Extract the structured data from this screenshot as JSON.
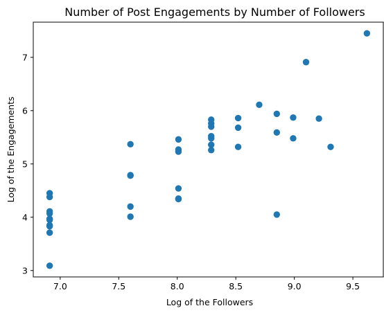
{
  "chart_data": {
    "type": "scatter",
    "title": "Number of Post Engagements by Number of Followers",
    "xlabel": "Log of the Followers",
    "ylabel": "Log of the Engagements",
    "xlim": [
      6.77,
      9.76
    ],
    "ylim": [
      2.88,
      7.66
    ],
    "xticks": [
      7.0,
      7.5,
      8.0,
      8.5,
      9.0,
      9.5
    ],
    "xtick_labels": [
      "7.0",
      "7.5",
      "8.0",
      "8.5",
      "9.0",
      "9.5"
    ],
    "yticks": [
      3,
      4,
      5,
      6,
      7
    ],
    "ytick_labels": [
      "3",
      "4",
      "5",
      "6",
      "7"
    ],
    "grid": false,
    "point_color": "#1f77b4",
    "points": [
      {
        "x": 6.91,
        "y": 4.45
      },
      {
        "x": 6.91,
        "y": 4.38
      },
      {
        "x": 6.91,
        "y": 4.11
      },
      {
        "x": 6.91,
        "y": 4.07
      },
      {
        "x": 6.91,
        "y": 3.97
      },
      {
        "x": 6.91,
        "y": 3.95
      },
      {
        "x": 6.91,
        "y": 3.85
      },
      {
        "x": 6.91,
        "y": 3.83
      },
      {
        "x": 6.91,
        "y": 3.71
      },
      {
        "x": 6.91,
        "y": 3.09
      },
      {
        "x": 7.6,
        "y": 5.37
      },
      {
        "x": 7.6,
        "y": 4.79
      },
      {
        "x": 7.6,
        "y": 4.78
      },
      {
        "x": 7.6,
        "y": 4.2
      },
      {
        "x": 7.6,
        "y": 4.01
      },
      {
        "x": 8.01,
        "y": 5.46
      },
      {
        "x": 8.01,
        "y": 5.27
      },
      {
        "x": 8.01,
        "y": 5.23
      },
      {
        "x": 8.01,
        "y": 4.54
      },
      {
        "x": 8.01,
        "y": 4.35
      },
      {
        "x": 8.01,
        "y": 4.34
      },
      {
        "x": 8.29,
        "y": 5.83
      },
      {
        "x": 8.29,
        "y": 5.76
      },
      {
        "x": 8.29,
        "y": 5.7
      },
      {
        "x": 8.29,
        "y": 5.52
      },
      {
        "x": 8.29,
        "y": 5.48
      },
      {
        "x": 8.29,
        "y": 5.36
      },
      {
        "x": 8.29,
        "y": 5.26
      },
      {
        "x": 8.52,
        "y": 5.86
      },
      {
        "x": 8.52,
        "y": 5.68
      },
      {
        "x": 8.52,
        "y": 5.32
      },
      {
        "x": 8.7,
        "y": 6.11
      },
      {
        "x": 8.85,
        "y": 5.94
      },
      {
        "x": 8.85,
        "y": 5.59
      },
      {
        "x": 8.85,
        "y": 4.05
      },
      {
        "x": 8.99,
        "y": 5.87
      },
      {
        "x": 8.99,
        "y": 5.48
      },
      {
        "x": 9.1,
        "y": 6.91
      },
      {
        "x": 9.21,
        "y": 5.85
      },
      {
        "x": 9.31,
        "y": 5.32
      },
      {
        "x": 9.62,
        "y": 7.45
      }
    ]
  }
}
